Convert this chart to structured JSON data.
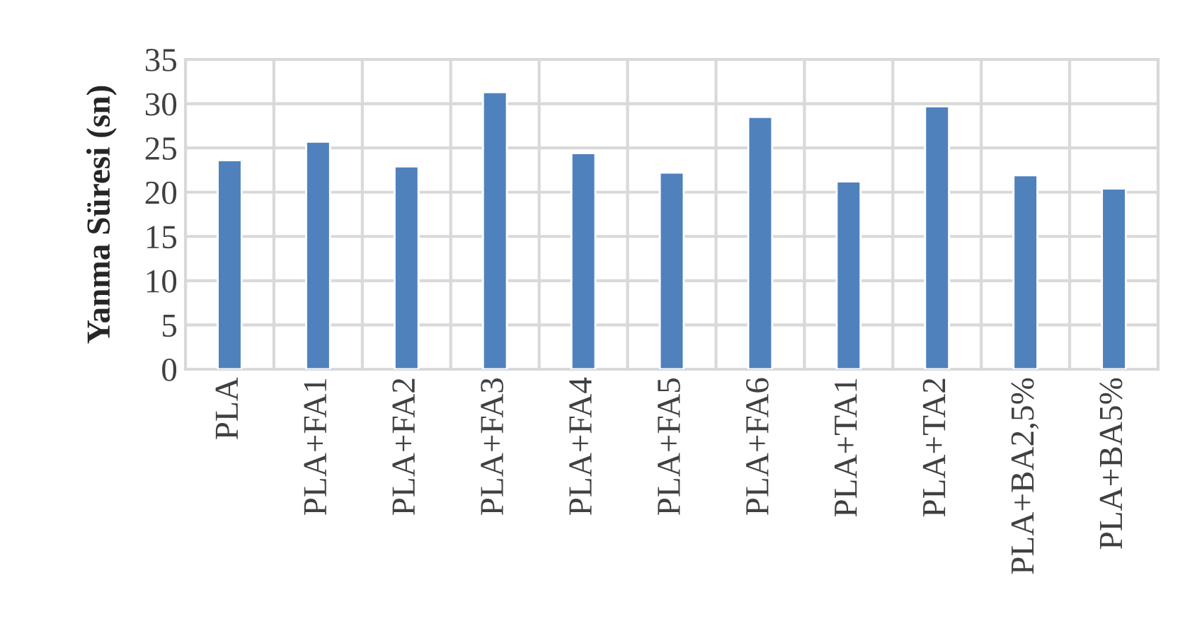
{
  "chart_data": {
    "type": "bar",
    "ylabel": "Yanma Süresi (sn)",
    "categories": [
      "PLA",
      "PLA+FA1",
      "PLA+FA2",
      "PLA+FA3",
      "PLA+FA4",
      "PLA+FA5",
      "PLA+FA6",
      "PLA+TA1",
      "PLA+TA2",
      "PLA+BA2,5%",
      "PLA+BA5%"
    ],
    "values": [
      23.6,
      25.7,
      22.9,
      31.3,
      24.4,
      22.2,
      28.5,
      21.2,
      29.7,
      21.9,
      20.4
    ],
    "color": "#4f81bd",
    "ylim": [
      0,
      35
    ],
    "yticks": [
      0,
      5,
      10,
      15,
      20,
      25,
      30,
      35
    ],
    "grid": true
  }
}
